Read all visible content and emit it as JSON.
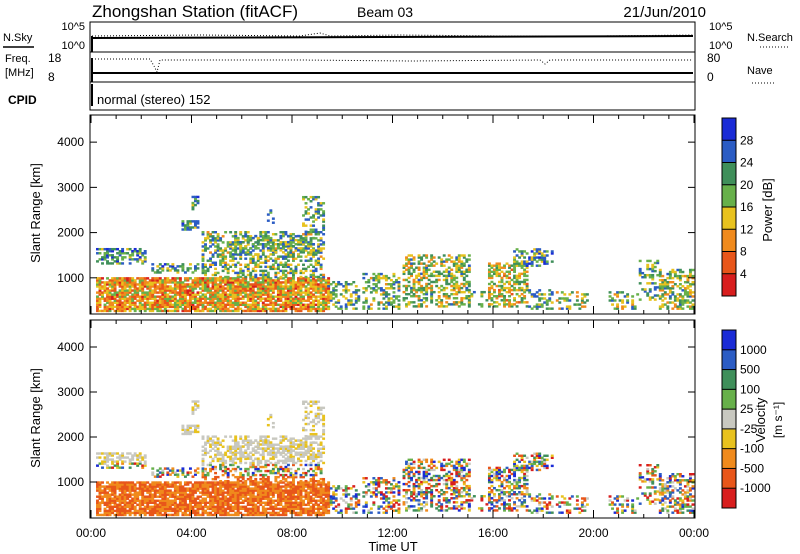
{
  "header": {
    "title": "Zhongshan Station (fitACF)",
    "beam": "Beam 03",
    "date": "21/Jun/2010"
  },
  "status_panels": {
    "nsky": {
      "label": "N.Sky",
      "left_ticks": [
        "10^5",
        "10^0"
      ],
      "right_ticks": [
        "10^5",
        "10^0"
      ],
      "right_label": "N.Search"
    },
    "freq": {
      "label_line1": "Freq.",
      "label_line2": "[MHz]",
      "left_ticks": [
        "18",
        "8"
      ],
      "right_ticks": [
        "80",
        "0"
      ],
      "right_label": "Nave"
    },
    "cpid": {
      "label": "CPID",
      "text": "normal (stereo) 152"
    }
  },
  "colors": {
    "power": [
      "#1a2bd6",
      "#2b5cc4",
      "#3f8f5a",
      "#67b04a",
      "#e8c21e",
      "#f08a1c",
      "#e8561a",
      "#d81e1e"
    ],
    "velocity": [
      "#1a2bd6",
      "#2b5cc4",
      "#3f8f5a",
      "#67b04a",
      "#c8c8c0",
      "#e8c21e",
      "#f08a1c",
      "#e8561a",
      "#d81e1e"
    ]
  },
  "chart_data": [
    {
      "type": "heatmap",
      "panel": "power",
      "ylabel": "Slant Range [km]",
      "ylim": [
        200,
        4600
      ],
      "yticks": [
        "1000",
        "2000",
        "3000",
        "4000"
      ],
      "xlim": [
        0,
        24
      ],
      "xticks": [
        "00:00",
        "04:00",
        "08:00",
        "12:00",
        "16:00",
        "20:00",
        "00:00"
      ],
      "colorbar": {
        "label": "Power [dB]",
        "ticks": [
          "4",
          "8",
          "12",
          "16",
          "20",
          "24",
          "28"
        ]
      }
    },
    {
      "type": "heatmap",
      "panel": "velocity",
      "ylabel": "Slant Range [km]",
      "ylim": [
        200,
        4600
      ],
      "yticks": [
        "1000",
        "2000",
        "3000",
        "4000"
      ],
      "xlim": [
        0,
        24
      ],
      "xticks": [
        "00:00",
        "04:00",
        "08:00",
        "12:00",
        "16:00",
        "20:00",
        "00:00"
      ],
      "xlabel": "Time UT",
      "colorbar": {
        "label": "Velocity",
        "unit": "[m s⁻¹]",
        "ticks": [
          "1000",
          "500",
          "100",
          "25",
          "-25",
          "-100",
          "-500",
          "-1000"
        ]
      }
    }
  ]
}
